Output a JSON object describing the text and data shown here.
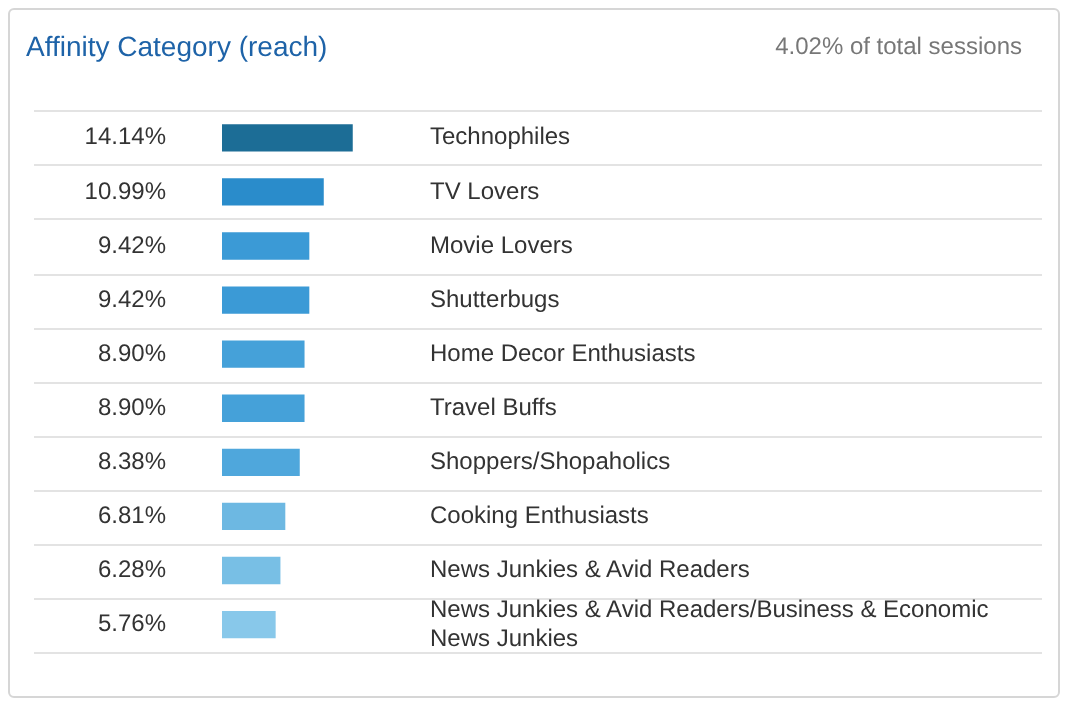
{
  "chart_data": {
    "type": "bar",
    "orientation": "horizontal",
    "title": "Affinity Category (reach)",
    "subtitle": "4.02% of total sessions",
    "categories": [
      "Technophiles",
      "TV Lovers",
      "Movie Lovers",
      "Shutterbugs",
      "Home Decor Enthusiasts",
      "Travel Buffs",
      "Shoppers/Shopaholics",
      "Cooking Enthusiasts",
      "News Junkies & Avid Readers",
      "News Junkies & Avid Readers/Business & Economic News Junkies"
    ],
    "values": [
      14.14,
      10.99,
      9.42,
      9.42,
      8.9,
      8.9,
      8.38,
      6.81,
      6.28,
      5.76
    ],
    "value_labels": [
      "14.14%",
      "10.99%",
      "9.42%",
      "9.42%",
      "8.90%",
      "8.90%",
      "8.38%",
      "6.81%",
      "6.28%",
      "5.76%"
    ],
    "colors": [
      "#1c6d96",
      "#2a8ccb",
      "#3b9ad6",
      "#3b9ad6",
      "#45a1d9",
      "#45a1d9",
      "#4fa7dc",
      "#6db8e2",
      "#78bfe5",
      "#88c8ea"
    ],
    "tick_labels": "y",
    "grid": "y",
    "legend": false
  }
}
